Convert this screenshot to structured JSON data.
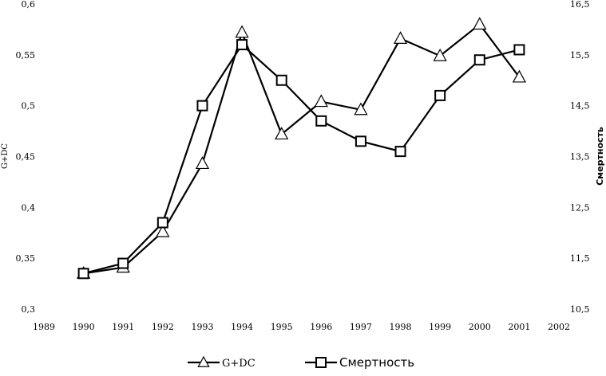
{
  "chart_data": {
    "type": "line",
    "title": "",
    "x": [
      1990,
      1991,
      1992,
      1993,
      1994,
      1995,
      1996,
      1997,
      1998,
      1999,
      2000,
      2001
    ],
    "xlim": [
      1989,
      2002
    ],
    "xticks": [
      "1989",
      "1990",
      "1991",
      "1992",
      "1993",
      "1994",
      "1995",
      "1996",
      "1997",
      "1998",
      "1999",
      "2000",
      "2001",
      "2002"
    ],
    "ylabel_left": "G+DC",
    "ylim_left": [
      0.3,
      0.6
    ],
    "yticks_left": [
      "0,3",
      "0,35",
      "0,4",
      "0,45",
      "0,5",
      "0,55",
      "0,6"
    ],
    "ylabel_right": "Смертность",
    "ylim_right": [
      10.5,
      16.5
    ],
    "yticks_right": [
      "10,5",
      "11,5",
      "12,5",
      "13,5",
      "14,5",
      "15,5",
      "16,5"
    ],
    "grid": false,
    "legend_position": "bottom",
    "series": [
      {
        "name": "G+DC",
        "axis": "left",
        "marker": "triangle",
        "values": [
          0.335,
          0.341,
          0.376,
          0.443,
          0.572,
          0.472,
          0.504,
          0.496,
          0.566,
          0.549,
          0.58,
          0.528
        ]
      },
      {
        "name": "Смертность",
        "axis": "right",
        "marker": "square",
        "values": [
          11.2,
          11.4,
          12.2,
          14.5,
          15.7,
          15.0,
          14.2,
          13.8,
          13.6,
          14.7,
          15.4,
          15.6
        ]
      }
    ]
  }
}
